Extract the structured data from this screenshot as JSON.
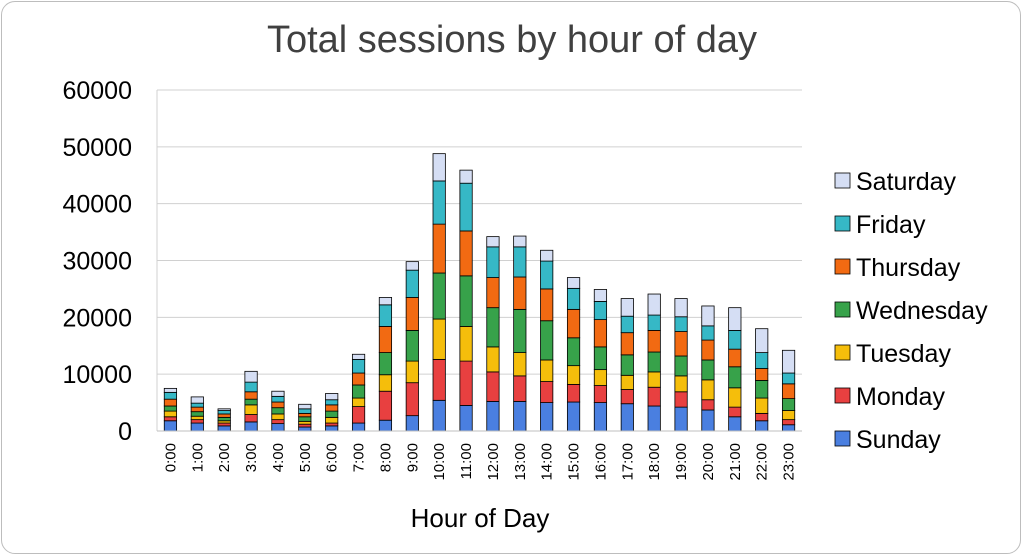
{
  "chart_data": {
    "type": "bar",
    "stacked": true,
    "title": "Total sessions by hour of day",
    "xlabel": "Hour of Day",
    "ylabel": "",
    "ylim": [
      0,
      60000
    ],
    "yticks": [
      "0",
      "10000",
      "20000",
      "30000",
      "40000",
      "50000",
      "60000"
    ],
    "grid": "horizontal",
    "legend_position": "right",
    "categories": [
      "0:00",
      "1:00",
      "2:00",
      "3:00",
      "4:00",
      "5:00",
      "6:00",
      "7:00",
      "8:00",
      "9:00",
      "10:00",
      "11:00",
      "12:00",
      "13:00",
      "14:00",
      "15:00",
      "16:00",
      "17:00",
      "18:00",
      "19:00",
      "20:00",
      "21:00",
      "22:00",
      "23:00"
    ],
    "series": [
      {
        "name": "Sunday",
        "color": "#4a7fe0",
        "values": [
          1800,
          1400,
          900,
          1600,
          1300,
          700,
          900,
          1400,
          1900,
          2700,
          5400,
          4500,
          5200,
          5200,
          5000,
          5100,
          5000,
          4800,
          4400,
          4200,
          3700,
          2500,
          1800,
          1100
        ]
      },
      {
        "name": "Monday",
        "color": "#e84040",
        "values": [
          700,
          600,
          500,
          1300,
          700,
          500,
          500,
          2900,
          5100,
          5800,
          7200,
          7800,
          5200,
          4500,
          3700,
          3100,
          3000,
          2500,
          3300,
          2700,
          1800,
          1700,
          1300,
          900
        ]
      },
      {
        "name": "Tuesday",
        "color": "#f5be0b",
        "values": [
          1000,
          600,
          400,
          1700,
          1000,
          500,
          1000,
          1500,
          2900,
          3800,
          7100,
          6100,
          4400,
          4100,
          3800,
          3300,
          2800,
          2500,
          2700,
          2800,
          3500,
          3400,
          2700,
          1600
        ]
      },
      {
        "name": "Wednesday",
        "color": "#37a24a",
        "values": [
          900,
          800,
          600,
          1000,
          1100,
          800,
          1100,
          2300,
          3900,
          5400,
          8100,
          8900,
          6900,
          7600,
          6900,
          4900,
          4000,
          3600,
          3500,
          3500,
          3500,
          3700,
          3100,
          2100
        ]
      },
      {
        "name": "Thursday",
        "color": "#f26a12",
        "values": [
          1200,
          800,
          600,
          1300,
          1000,
          600,
          1100,
          2100,
          4600,
          5800,
          8600,
          7900,
          5300,
          5700,
          5600,
          5000,
          4800,
          3900,
          3800,
          4300,
          3500,
          3100,
          2100,
          2600
        ]
      },
      {
        "name": "Friday",
        "color": "#36b8c6",
        "values": [
          1200,
          700,
          600,
          1700,
          1000,
          800,
          900,
          2400,
          3800,
          4800,
          7600,
          8400,
          5400,
          5300,
          4900,
          3700,
          3200,
          2900,
          2700,
          2600,
          2500,
          3300,
          2800,
          1900
        ]
      },
      {
        "name": "Saturday",
        "color": "#d5def4",
        "values": [
          700,
          1100,
          300,
          1900,
          900,
          800,
          1100,
          900,
          1300,
          1500,
          4800,
          2300,
          1800,
          1900,
          1900,
          1900,
          2100,
          3100,
          3700,
          3200,
          3500,
          4000,
          4200,
          4000
        ]
      }
    ]
  }
}
